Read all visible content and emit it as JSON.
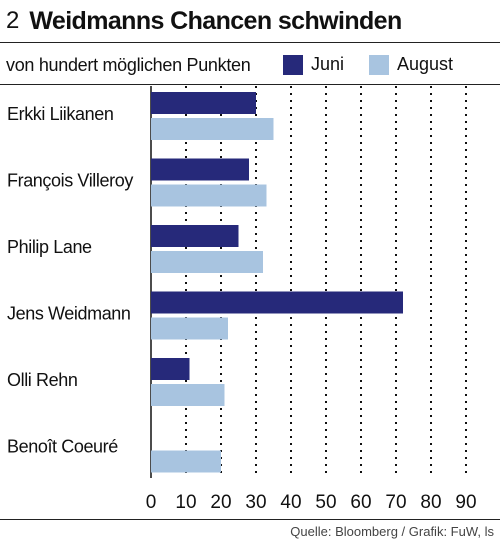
{
  "header": {
    "number": "2",
    "title": "Weidmanns Chancen schwinden",
    "subtitle": "von hundert möglichen Punkten"
  },
  "footer": {
    "source": "Quelle: Bloomberg / Grafik: FuW, ls"
  },
  "colors": {
    "juni": "#26297a",
    "august": "#a8c4e0"
  },
  "chart_data": {
    "type": "bar",
    "orientation": "horizontal",
    "title": "Weidmanns Chancen schwinden",
    "subtitle": "von hundert möglichen Punkten",
    "categories": [
      "Erkki Liikanen",
      "François Villeroy",
      "Philip Lane",
      "Jens Weidmann",
      "Olli Rehn",
      "Benoît Coeuré"
    ],
    "series": [
      {
        "name": "Juni",
        "values": [
          30,
          28,
          25,
          72,
          11,
          0
        ]
      },
      {
        "name": "August",
        "values": [
          35,
          33,
          32,
          22,
          21,
          20
        ]
      }
    ],
    "xlim": [
      0,
      100
    ],
    "xticks": [
      "0",
      "10",
      "20",
      "30",
      "40",
      "50",
      "60",
      "70",
      "80",
      "90"
    ],
    "grid": "vertical dotted",
    "legend": "top-right"
  }
}
